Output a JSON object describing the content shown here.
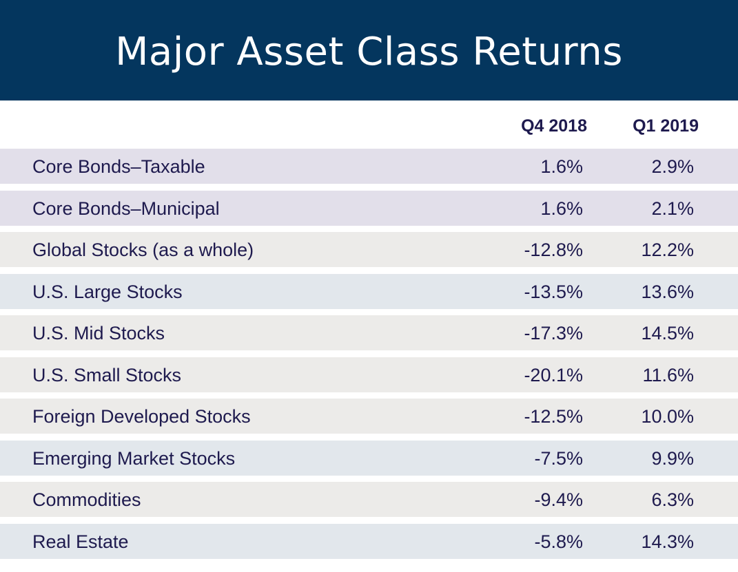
{
  "chart_data": {
    "type": "table",
    "title": "Major Asset Class Returns",
    "columns": [
      "Q4 2018",
      "Q1 2019"
    ],
    "rows": [
      {
        "label": "Core Bonds–Taxable",
        "q4_2018": "1.6%",
        "q1_2019": "2.9%",
        "bg": "#e2dfea"
      },
      {
        "label": "Core Bonds–Municipal",
        "q4_2018": "1.6%",
        "q1_2019": "2.1%",
        "bg": "#e2dfea"
      },
      {
        "label": "Global Stocks (as a whole)",
        "q4_2018": "-12.8%",
        "q1_2019": "12.2%",
        "bg": "#ecebe9"
      },
      {
        "label": "U.S. Large Stocks",
        "q4_2018": "-13.5%",
        "q1_2019": "13.6%",
        "bg": "#e2e7ec"
      },
      {
        "label": "U.S. Mid Stocks",
        "q4_2018": "-17.3%",
        "q1_2019": "14.5%",
        "bg": "#ecebe9"
      },
      {
        "label": "U.S. Small Stocks",
        "q4_2018": "-20.1%",
        "q1_2019": "11.6%",
        "bg": "#ecebe9"
      },
      {
        "label": "Foreign Developed Stocks",
        "q4_2018": "-12.5%",
        "q1_2019": "10.0%",
        "bg": "#ecebe9"
      },
      {
        "label": "Emerging Market Stocks",
        "q4_2018": "-7.5%",
        "q1_2019": "9.9%",
        "bg": "#e2e7ec"
      },
      {
        "label": "Commodities",
        "q4_2018": "-9.4%",
        "q1_2019": "6.3%",
        "bg": "#ecebe9"
      },
      {
        "label": "Real Estate",
        "q4_2018": "-5.8%",
        "q1_2019": "14.3%",
        "bg": "#e2e7ec"
      }
    ]
  },
  "colors": {
    "banner": "#04365e",
    "text": "#1e1a4e"
  }
}
